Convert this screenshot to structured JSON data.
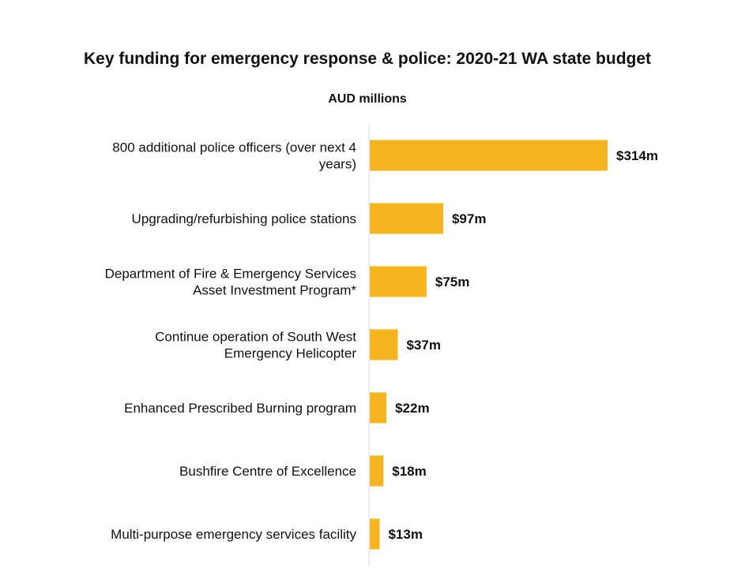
{
  "chart_data": {
    "type": "bar",
    "orientation": "horizontal",
    "title": "Key funding for emergency response & police: 2020-21 WA state budget",
    "subtitle": "AUD millions",
    "categories": [
      "800 additional police officers (over next 4 years)",
      "Upgrading/refurbishing police stations",
      "Department of Fire & Emergency Services Asset Investment Program*",
      "Continue operation of South West Emergency Helicopter",
      "Enhanced Prescribed Burning program",
      "Bushfire Centre of Excellence",
      "Multi-purpose emergency services facility"
    ],
    "category_lines": [
      [
        "800 additional police officers (over next 4",
        "years)"
      ],
      [
        "Upgrading/refurbishing police stations"
      ],
      [
        "Department of Fire & Emergency Services",
        "Asset Investment Program*"
      ],
      [
        "Continue operation of South West",
        "Emergency Helicopter"
      ],
      [
        "Enhanced Prescribed Burning program"
      ],
      [
        "Bushfire Centre of Excellence"
      ],
      [
        "Multi-purpose emergency services facility"
      ]
    ],
    "values": [
      314,
      97,
      75,
      37,
      22,
      18,
      13
    ],
    "value_labels": [
      "$314m",
      "$97m",
      "$75m",
      "$37m",
      "$22m",
      "$18m",
      "$13m"
    ],
    "xlim": [
      0,
      314
    ],
    "xlabel": "",
    "ylabel": "",
    "grid": false,
    "legend": "none",
    "colors": {
      "bar": "#F6B51E",
      "axis": "#d9d9d9",
      "text": "#111111"
    }
  }
}
